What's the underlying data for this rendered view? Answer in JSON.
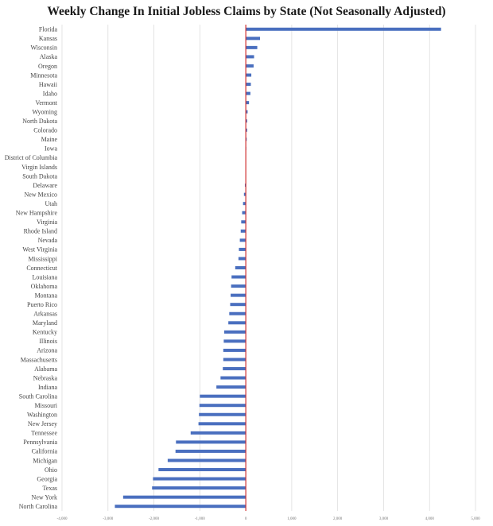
{
  "chart_data": {
    "type": "bar",
    "orientation": "horizontal",
    "title": "Weekly Change In Initial Jobless Claims by State (Not Seasonally Adjusted)",
    "xlabel": "",
    "ylabel": "",
    "xlim": [
      -4000,
      5000
    ],
    "x_ticks": [
      -4000,
      -3000,
      -2000,
      -1000,
      0,
      1000,
      2000,
      3000,
      4000,
      5000
    ],
    "x_tick_labels": [
      "-4,000",
      "-3,000",
      "-2,000",
      "-1,000",
      "0",
      "1,000",
      "2,000",
      "3,000",
      "4,000",
      "5,000"
    ],
    "grid": "vertical",
    "legend": "none",
    "colors": {
      "bar": "#4a6fbf",
      "zero_line": "#d03030",
      "grid": "#dddddd"
    },
    "categories": [
      "Florida",
      "Kansas",
      "Wisconsin",
      "Alaska",
      "Oregon",
      "Minnesota",
      "Hawaii",
      "Idaho",
      "Vermont",
      "Wyoming",
      "North Dakota",
      "Colorado",
      "Maine",
      "Iowa",
      "District of Columbia",
      "Virgin Islands",
      "South Dakota",
      "Delaware",
      "New Mexico",
      "Utah",
      "New Hampshire",
      "Virginia",
      "Rhode Island",
      "Nevada",
      "West Virginia",
      "Mississippi",
      "Connecticut",
      "Louisiana",
      "Oklahoma",
      "Montana",
      "Puerto Rico",
      "Arkansas",
      "Maryland",
      "Kentucky",
      "Illinois",
      "Arizona",
      "Massachusetts",
      "Alabama",
      "Nebraska",
      "Indiana",
      "South Carolina",
      "Missouri",
      "Washington",
      "New Jersey",
      "Tennessee",
      "Pennsylvania",
      "California",
      "Michigan",
      "Ohio",
      "Georgia",
      "Texas",
      "New York",
      "North Carolina"
    ],
    "values": [
      4250,
      310,
      250,
      180,
      170,
      120,
      110,
      100,
      70,
      40,
      30,
      30,
      20,
      10,
      5,
      0,
      -5,
      -20,
      -40,
      -60,
      -80,
      -100,
      -110,
      -130,
      -150,
      -160,
      -230,
      -310,
      -320,
      -330,
      -340,
      -360,
      -380,
      -470,
      -480,
      -490,
      -490,
      -500,
      -550,
      -640,
      -1000,
      -1010,
      -1020,
      -1030,
      -1200,
      -1520,
      -1530,
      -1700,
      -1900,
      -2020,
      -2040,
      -2670,
      -2850
    ]
  }
}
